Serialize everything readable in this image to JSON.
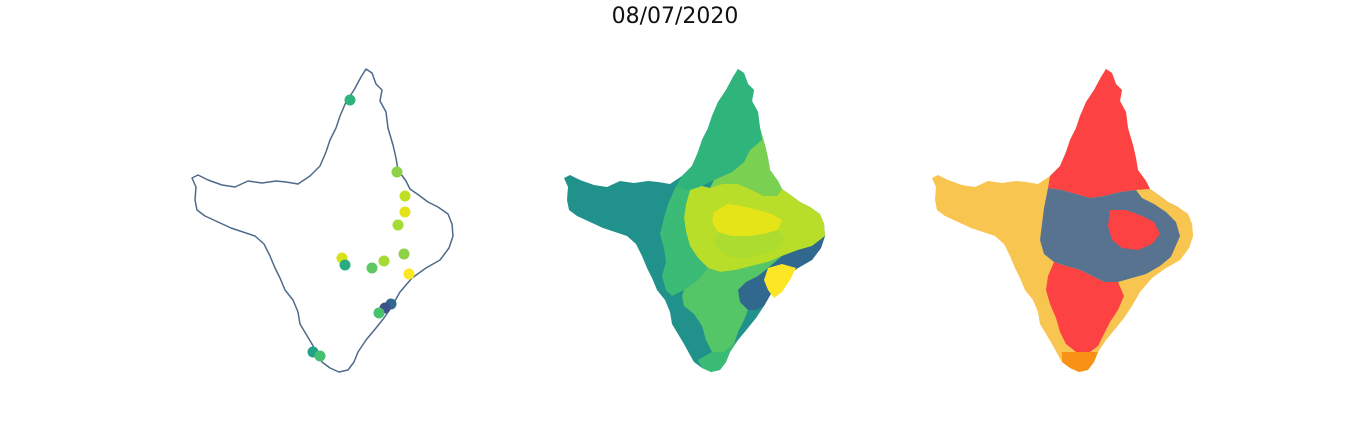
{
  "figure": {
    "title": "08/07/2020"
  },
  "panels": [
    {
      "kind": "point-map",
      "outline_color": "#4e6a8a",
      "point_colors": [
        "#2fb37d",
        "#8fd249",
        "#bddf26",
        "#e2e418",
        "#d8e219",
        "#a5db36",
        "#27ad81",
        "#5ec962",
        "#fde725",
        "#31688e",
        "#3b528b",
        "#4ac16d",
        "#20a386",
        "#45bf70"
      ]
    },
    {
      "kind": "choropleth",
      "palette": [
        "#21918c",
        "#2fb47c",
        "#3bbb75",
        "#55c667",
        "#7ad151",
        "#addc30",
        "#b8de29",
        "#e5e419",
        "#31688e"
      ]
    },
    {
      "kind": "classified-map",
      "legend_colors": {
        "red": "#fc4242",
        "yellow": "#f8c550",
        "slate": "#577390",
        "orange": "#f99116"
      }
    }
  ]
}
